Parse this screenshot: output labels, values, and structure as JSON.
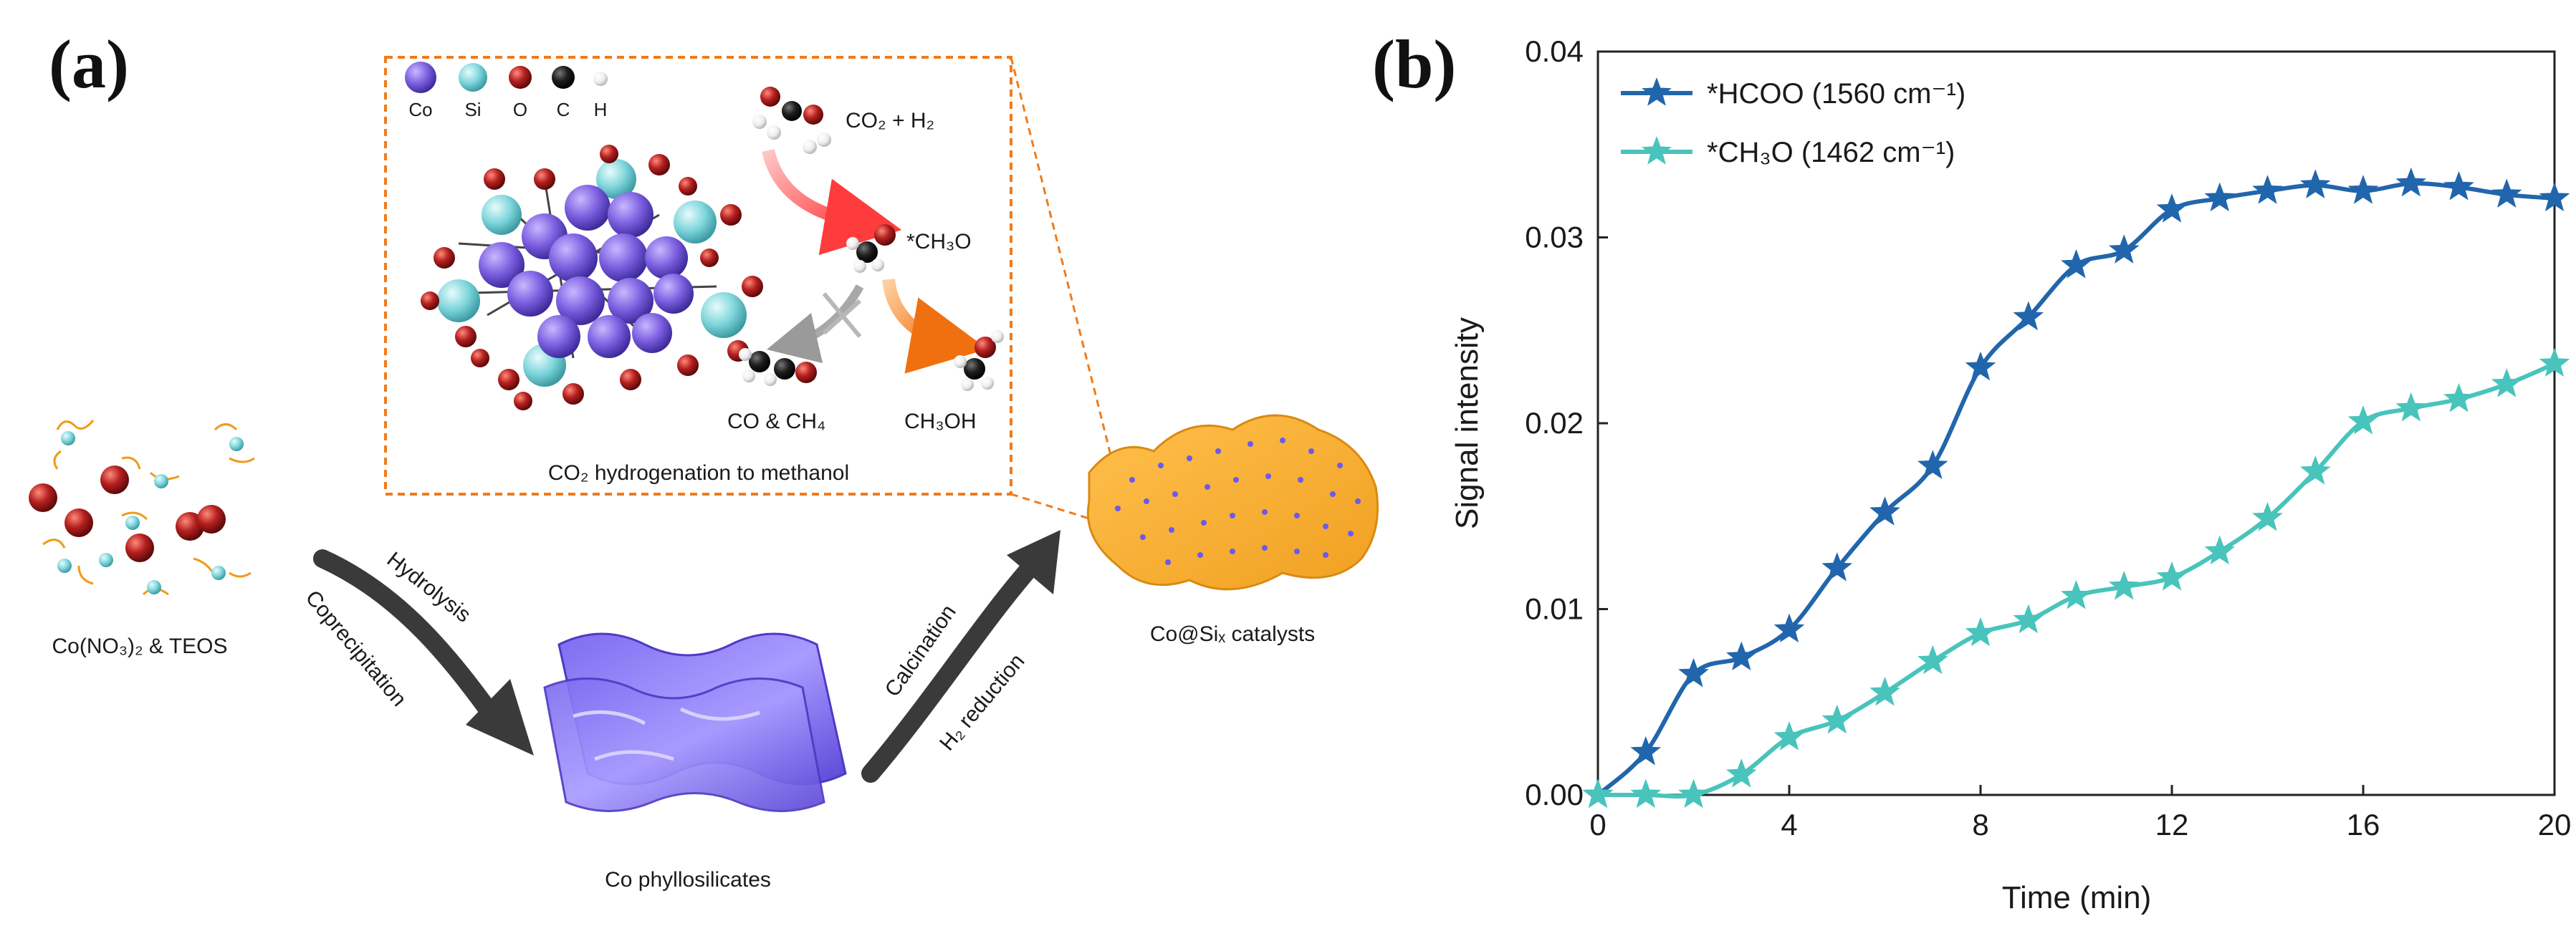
{
  "panel_a": {
    "label": "(a)",
    "inset": {
      "legend": [
        "Co",
        "Si",
        "O",
        "C",
        "H"
      ],
      "colors": {
        "Co": "#7b5fe0",
        "Si": "#7fd6dc",
        "O": "#a81c1c",
        "C": "#1a1a1a",
        "H": "#f2f2f2"
      },
      "reactants": "CO₂ + H₂",
      "intermediate": "*CH₃O",
      "byproducts": "CO & CH₄",
      "product": "CH₃OH",
      "caption": "CO₂ hydrogenation to methanol"
    },
    "precursor_label": "Co(NO₃)₂ & TEOS",
    "step1_top": "Hydrolysis",
    "step1_bottom": "Coprecipitation",
    "intermediate_label": "Co phyllosilicates",
    "step2_top": "Calcination",
    "step2_bottom": "H₂ reduction",
    "catalyst_label": "Co@Siₓ catalysts"
  },
  "panel_b": {
    "label": "(b)"
  },
  "chart_data": {
    "type": "line",
    "title": "",
    "xlabel": "Time (min)",
    "ylabel": "Signal intensity",
    "xlim": [
      0,
      20
    ],
    "ylim": [
      0,
      0.04
    ],
    "xticks": [
      0,
      4,
      8,
      12,
      16,
      20
    ],
    "yticks": [
      0.0,
      0.01,
      0.02,
      0.03,
      0.04
    ],
    "ytick_labels": [
      "0.00",
      "0.01",
      "0.02",
      "0.03",
      "0.04"
    ],
    "grid": false,
    "legend_position": "top-left",
    "series": [
      {
        "name": "*HCOO (1560 cm⁻¹)",
        "color": "#2166ac",
        "marker": "star",
        "x": [
          0,
          1,
          2,
          3,
          4,
          5,
          6,
          7,
          8,
          9,
          10,
          11,
          12,
          13,
          14,
          15,
          16,
          17,
          18,
          19,
          20
        ],
        "values": [
          0.0,
          0.0023,
          0.0065,
          0.0074,
          0.0089,
          0.0122,
          0.0152,
          0.0177,
          0.023,
          0.0257,
          0.0285,
          0.0293,
          0.0315,
          0.0321,
          0.0325,
          0.0328,
          0.0325,
          0.0329,
          0.0327,
          0.0323,
          0.0321
        ]
      },
      {
        "name": "*CH₃O (1462 cm⁻¹)",
        "color": "#48c4bc",
        "marker": "star",
        "x": [
          0,
          1,
          2,
          3,
          4,
          5,
          6,
          7,
          8,
          9,
          10,
          11,
          12,
          13,
          14,
          15,
          16,
          17,
          18,
          19,
          20
        ],
        "values": [
          0.0,
          0.0,
          0.0,
          0.0011,
          0.0031,
          0.004,
          0.0055,
          0.0072,
          0.0087,
          0.0094,
          0.0107,
          0.0112,
          0.0117,
          0.0131,
          0.0149,
          0.0174,
          0.0201,
          0.0208,
          0.0213,
          0.0221,
          0.0232
        ]
      }
    ]
  }
}
